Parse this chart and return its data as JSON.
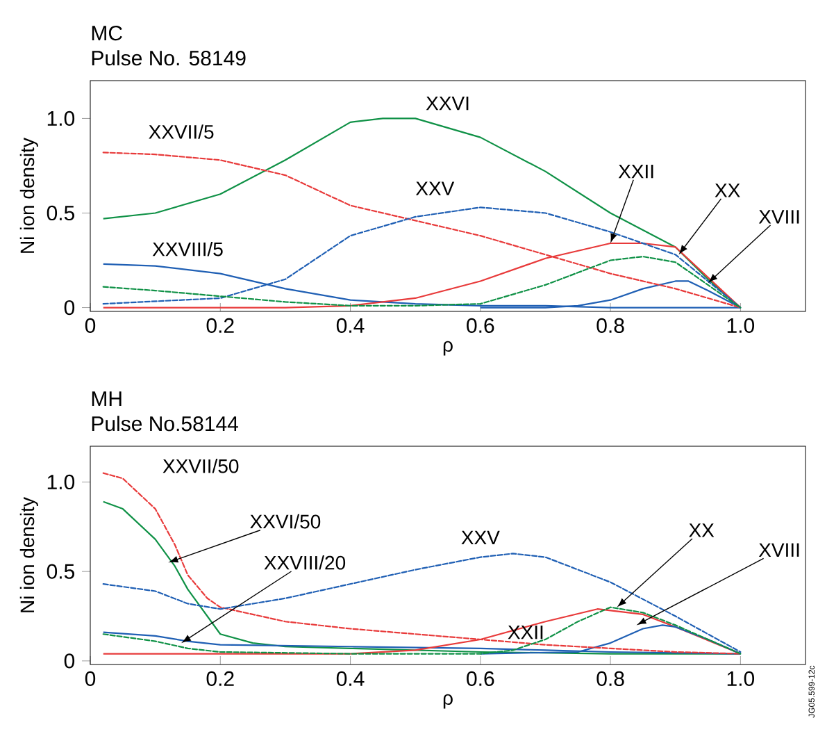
{
  "chart_data": [
    {
      "type": "line",
      "title": "MC",
      "subtitle": "Pulse No. 58149",
      "xlabel": "ρ",
      "ylabel": "Ni ion density",
      "xlim": [
        0,
        1.1
      ],
      "ylim": [
        -0.02,
        1.2
      ],
      "xticks": [
        0,
        0.2,
        0.4,
        0.6,
        0.8,
        {
          "value": 1.0,
          "label": "1.0"
        }
      ],
      "yticks": [
        0,
        0.5,
        {
          "value": 1.0,
          "label": "1.0"
        }
      ],
      "grid": false,
      "series": [
        {
          "color": "#0f9146",
          "line_style": "solid",
          "x": [
            0.02,
            0.1,
            0.2,
            0.3,
            0.4,
            0.45,
            0.5,
            0.6,
            0.7,
            0.8,
            0.9,
            0.95,
            1.0
          ],
          "values": [
            0.47,
            0.5,
            0.6,
            0.78,
            0.98,
            1.0,
            1.0,
            0.9,
            0.72,
            0.5,
            0.32,
            0.15,
            0
          ]
        },
        {
          "color": "#e83a3a",
          "line_style": "dashed",
          "x": [
            0.02,
            0.1,
            0.2,
            0.3,
            0.4,
            0.5,
            0.6,
            0.7,
            0.8,
            0.9,
            1.0
          ],
          "values": [
            0.82,
            0.81,
            0.78,
            0.7,
            0.54,
            0.46,
            0.38,
            0.28,
            0.18,
            0.1,
            0
          ]
        },
        {
          "color": "#1f5fb4",
          "line_style": "dashed",
          "x": [
            0.02,
            0.2,
            0.3,
            0.4,
            0.5,
            0.6,
            0.7,
            0.8,
            0.9,
            1.0
          ],
          "values": [
            0.02,
            0.05,
            0.15,
            0.38,
            0.48,
            0.53,
            0.5,
            0.4,
            0.28,
            0
          ]
        },
        {
          "color": "#1f5fb4",
          "line_style": "solid",
          "x": [
            0.02,
            0.1,
            0.2,
            0.3,
            0.4,
            0.5,
            0.6,
            0.7,
            0.8,
            0.9,
            1.0
          ],
          "values": [
            0.23,
            0.22,
            0.18,
            0.1,
            0.04,
            0.02,
            0.01,
            0.01,
            0,
            0,
            0
          ]
        },
        {
          "color": "#0f9146",
          "line_style": "dashed",
          "x": [
            0.02,
            0.1,
            0.2,
            0.3,
            0.4,
            0.5,
            0.6,
            0.7,
            0.8,
            0.85,
            0.9,
            1.0
          ],
          "values": [
            0.11,
            0.09,
            0.06,
            0.03,
            0.01,
            0.01,
            0.02,
            0.12,
            0.25,
            0.27,
            0.24,
            0
          ]
        },
        {
          "color": "#e83a3a",
          "line_style": "solid",
          "x": [
            0.02,
            0.3,
            0.4,
            0.5,
            0.6,
            0.7,
            0.8,
            0.85,
            0.9,
            0.95,
            1.0
          ],
          "values": [
            0,
            0,
            0.01,
            0.05,
            0.14,
            0.26,
            0.34,
            0.34,
            0.32,
            0.16,
            0
          ]
        },
        {
          "color": "#1f5fb4",
          "line_style": "solid",
          "x": [
            0.6,
            0.7,
            0.75,
            0.8,
            0.85,
            0.9,
            0.92,
            0.95,
            1.0
          ],
          "values": [
            0,
            0,
            0.01,
            0.04,
            0.1,
            0.14,
            0.14,
            0.09,
            0
          ]
        }
      ],
      "annotations": [
        {
          "text": "XXVI",
          "x": 0.5,
          "y": 1.0
        },
        {
          "text": "XXVII/5",
          "x": 0.02,
          "y": 0.82
        },
        {
          "text": "XXV",
          "x": 0.6,
          "y": 0.53
        },
        {
          "text": "XXVIII/5",
          "x": 0.1,
          "y": 0.22
        },
        {
          "text": "XXII",
          "x": 0.8,
          "y": 0.34
        },
        {
          "text": "XX",
          "x": 0.905,
          "y": 0.28
        },
        {
          "text": "XVIII",
          "x": 0.95,
          "y": 0.13
        }
      ]
    },
    {
      "type": "line",
      "title": "MH",
      "subtitle": "Pulse No.58144",
      "xlabel": "ρ",
      "ylabel": "Ni ion density",
      "xlim": [
        0,
        1.1
      ],
      "ylim": [
        -0.02,
        1.2
      ],
      "xticks": [
        0,
        0.2,
        0.4,
        0.6,
        0.8,
        {
          "value": 1.0,
          "label": "1.0"
        }
      ],
      "yticks": [
        0,
        0.5,
        {
          "value": 1.0,
          "label": "1.0"
        }
      ],
      "grid": false,
      "series": [
        {
          "color": "#e83a3a",
          "line_style": "dashed",
          "x": [
            0.02,
            0.05,
            0.1,
            0.13,
            0.15,
            0.18,
            0.2,
            0.3,
            0.4,
            0.5,
            0.6,
            0.7,
            0.8,
            0.9,
            1.0
          ],
          "values": [
            1.05,
            1.02,
            0.85,
            0.65,
            0.48,
            0.35,
            0.3,
            0.22,
            0.18,
            0.15,
            0.12,
            0.09,
            0.07,
            0.05,
            0.04
          ]
        },
        {
          "color": "#0f9146",
          "line_style": "solid",
          "x": [
            0.02,
            0.05,
            0.1,
            0.13,
            0.15,
            0.18,
            0.2,
            0.25,
            0.3,
            0.4,
            0.6,
            0.8,
            1.0
          ],
          "values": [
            0.89,
            0.85,
            0.68,
            0.53,
            0.4,
            0.25,
            0.15,
            0.1,
            0.08,
            0.07,
            0.05,
            0.04,
            0.04
          ]
        },
        {
          "color": "#1f5fb4",
          "line_style": "dashed",
          "x": [
            0.02,
            0.1,
            0.15,
            0.2,
            0.3,
            0.4,
            0.5,
            0.6,
            0.65,
            0.7,
            0.8,
            0.9,
            1.0
          ],
          "values": [
            0.43,
            0.39,
            0.32,
            0.29,
            0.35,
            0.43,
            0.51,
            0.58,
            0.6,
            0.58,
            0.44,
            0.25,
            0.05
          ]
        },
        {
          "color": "#1f5fb4",
          "line_style": "solid",
          "x": [
            0.02,
            0.1,
            0.15,
            0.2,
            0.4,
            0.6,
            0.7,
            0.8,
            1.0
          ],
          "values": [
            0.16,
            0.14,
            0.11,
            0.09,
            0.08,
            0.07,
            0.06,
            0.05,
            0.04
          ]
        },
        {
          "color": "#0f9146",
          "line_style": "dashed",
          "x": [
            0.02,
            0.1,
            0.15,
            0.2,
            0.4,
            0.6,
            0.65,
            0.7,
            0.75,
            0.8,
            0.85,
            0.9,
            1.0
          ],
          "values": [
            0.15,
            0.11,
            0.07,
            0.05,
            0.04,
            0.04,
            0.06,
            0.12,
            0.22,
            0.3,
            0.27,
            0.2,
            0.04
          ]
        },
        {
          "color": "#e83a3a",
          "line_style": "solid",
          "x": [
            0.02,
            0.4,
            0.5,
            0.6,
            0.7,
            0.78,
            0.85,
            0.9,
            1.0
          ],
          "values": [
            0.04,
            0.04,
            0.06,
            0.12,
            0.22,
            0.29,
            0.26,
            0.19,
            0.04
          ]
        },
        {
          "color": "#1f5fb4",
          "line_style": "solid",
          "x": [
            0.6,
            0.75,
            0.8,
            0.85,
            0.88,
            0.9,
            0.95,
            1.0
          ],
          "values": [
            0.04,
            0.05,
            0.1,
            0.18,
            0.2,
            0.19,
            0.12,
            0.04
          ]
        }
      ],
      "annotations": [
        {
          "text": "XXVII/50",
          "x": 0.03,
          "y": 1.05
        },
        {
          "text": "XXVI/50",
          "x": 0.12,
          "y": 0.55
        },
        {
          "text": "XXVIII/20",
          "x": 0.14,
          "y": 0.1
        },
        {
          "text": "XXV",
          "x": 0.65,
          "y": 0.6
        },
        {
          "text": "XXII",
          "x": 0.7,
          "y": 0.22
        },
        {
          "text": "XX",
          "x": 0.81,
          "y": 0.3
        },
        {
          "text": "XVIII",
          "x": 0.84,
          "y": 0.2
        },
        "JG05.599-12c"
      ]
    }
  ]
}
